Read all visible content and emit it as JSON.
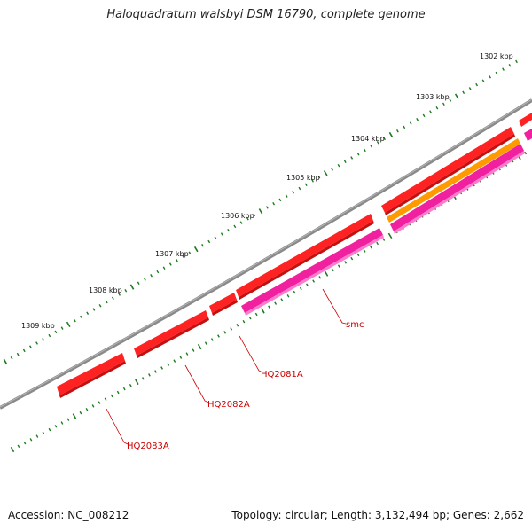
{
  "title": "Haloquadratum walsbyi DSM 16790, complete genome",
  "footer": {
    "accession": "Accession: NC_008212",
    "summary": "Topology: circular; Length: 3,132,494 bp; Genes: 2,662"
  },
  "scale_labels": [
    "1302 kbp",
    "1303 kbp",
    "1304 kbp",
    "1305 kbp",
    "1306 kbp",
    "1307 kbp",
    "1308 kbp",
    "1309 kbp"
  ],
  "gene_labels": [
    "smc",
    "HQ2081A",
    "HQ2082A",
    "HQ2083A"
  ],
  "colors": {
    "backbone": "#7a7a7a",
    "ticks": "#1d7a1d",
    "cds": "#ff0000",
    "cds_pink": "#e8199a",
    "cds_orange": "#ff9900",
    "label": "#cc0000"
  }
}
